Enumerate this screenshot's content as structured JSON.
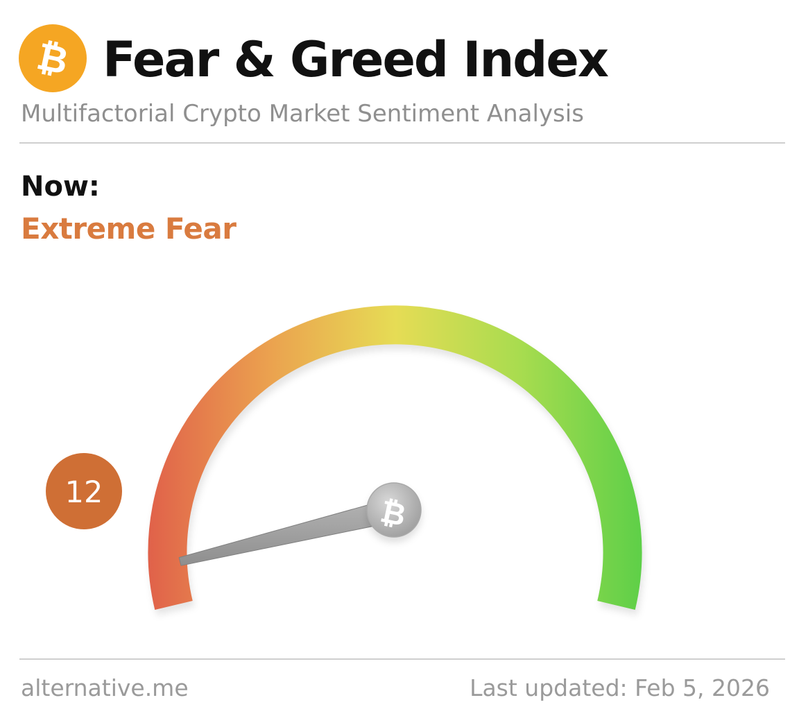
{
  "header": {
    "logo_icon": "bitcoin-icon",
    "logo_glyph": "₿",
    "title": "Fear & Greed Index",
    "subtitle": "Multifactorial Crypto Market Sentiment Analysis"
  },
  "current": {
    "label": "Now:",
    "classification": "Extreme Fear",
    "value": "12",
    "scale_min": 0,
    "scale_max": 100
  },
  "gauge": {
    "hub_icon": "bitcoin-icon",
    "hub_glyph": "₿"
  },
  "footer": {
    "source": "alternative.me",
    "last_updated": "Last updated: Feb 5, 2026"
  },
  "colors": {
    "accent": "#d97b3f",
    "badge": "#cf6f35",
    "logo": "#f5a623",
    "fear": "#e0604a",
    "neutral": "#e6dc55",
    "greed": "#5ccf48"
  }
}
